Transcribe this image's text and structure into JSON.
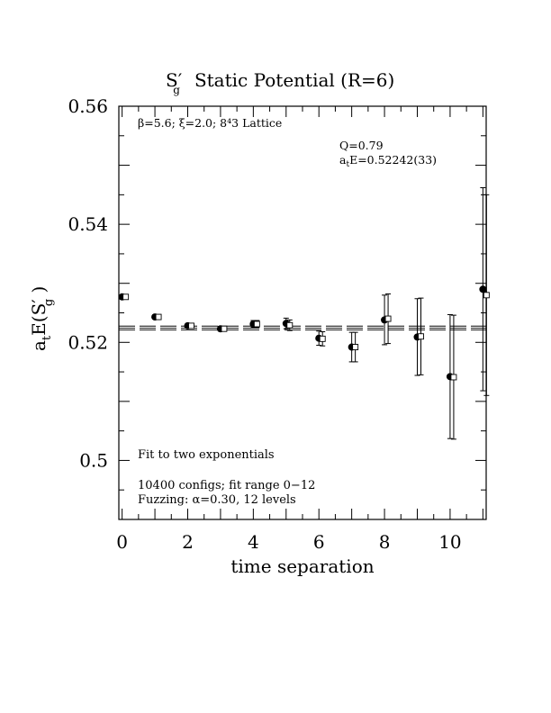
{
  "chart_data": {
    "type": "scatter",
    "title": "Static Potential (R=6)",
    "title_symbol": "S",
    "title_symbol_sub": "g",
    "title_symbol_prime": "′",
    "xlabel": "time separation",
    "ylabel_prefix": "a",
    "ylabel_prefix_sub": "t",
    "ylabel_func": "E(S",
    "ylabel_func_prime": "′",
    "ylabel_func_sub": "g",
    "ylabel_close": " )",
    "xlim": [
      -0.1,
      11.1
    ],
    "ylim": [
      0.49,
      0.56
    ],
    "x_ticks": [
      0,
      2,
      4,
      6,
      8,
      10
    ],
    "x_tick_labels": [
      "0",
      "2",
      "4",
      "6",
      "8",
      "10"
    ],
    "y_ticks": [
      0.5,
      0.52,
      0.54,
      0.56
    ],
    "y_tick_labels": [
      "0.5",
      "0.52",
      "0.54",
      "0.56"
    ],
    "annotations": {
      "lattice_line": "β=5.6; ξ=2.0; 8⁴3 Lattice",
      "q_line": "Q=0.79",
      "energy_prefix": "a",
      "energy_sub": "t",
      "energy_rest": "E=0.52242(33)",
      "fit_line": "Fit to two exponentials",
      "configs_line": "10400 configs; fit range 0−12",
      "fuzzing_line": "Fuzzing: α=0.30, 12 levels"
    },
    "fit_band": {
      "center": 0.52242,
      "error": 0.00033
    },
    "series": [
      {
        "marker": "filled-circle",
        "points": [
          {
            "x": 0,
            "y": 0.5277,
            "err": 0.0003
          },
          {
            "x": 1,
            "y": 0.5243,
            "err": 0.0003
          },
          {
            "x": 2,
            "y": 0.5228,
            "err": 0.0004
          },
          {
            "x": 3,
            "y": 0.5223,
            "err": 0.0004
          },
          {
            "x": 4,
            "y": 0.5231,
            "err": 0.0006
          },
          {
            "x": 5,
            "y": 0.5232,
            "err": 0.0009
          },
          {
            "x": 6,
            "y": 0.5207,
            "err": 0.0012
          },
          {
            "x": 7,
            "y": 0.5192,
            "err": 0.0025
          },
          {
            "x": 8,
            "y": 0.5238,
            "err": 0.0042
          },
          {
            "x": 9,
            "y": 0.5209,
            "err": 0.0065
          },
          {
            "x": 10,
            "y": 0.5142,
            "err": 0.0105
          },
          {
            "x": 11,
            "y": 0.529,
            "err": 0.0172
          }
        ]
      },
      {
        "marker": "open-square",
        "points": [
          {
            "x": 0,
            "y": 0.5277,
            "err": 0.0003
          },
          {
            "x": 1,
            "y": 0.5243,
            "err": 0.0003
          },
          {
            "x": 2,
            "y": 0.5228,
            "err": 0.0004
          },
          {
            "x": 3,
            "y": 0.5223,
            "err": 0.0004
          },
          {
            "x": 4,
            "y": 0.5231,
            "err": 0.0006
          },
          {
            "x": 5,
            "y": 0.5229,
            "err": 0.0009
          },
          {
            "x": 6,
            "y": 0.5206,
            "err": 0.0012
          },
          {
            "x": 7,
            "y": 0.5192,
            "err": 0.0025
          },
          {
            "x": 8,
            "y": 0.524,
            "err": 0.0042
          },
          {
            "x": 9,
            "y": 0.521,
            "err": 0.0065
          },
          {
            "x": 10,
            "y": 0.5141,
            "err": 0.0105
          },
          {
            "x": 11,
            "y": 0.528,
            "err": 0.017
          }
        ]
      }
    ]
  }
}
